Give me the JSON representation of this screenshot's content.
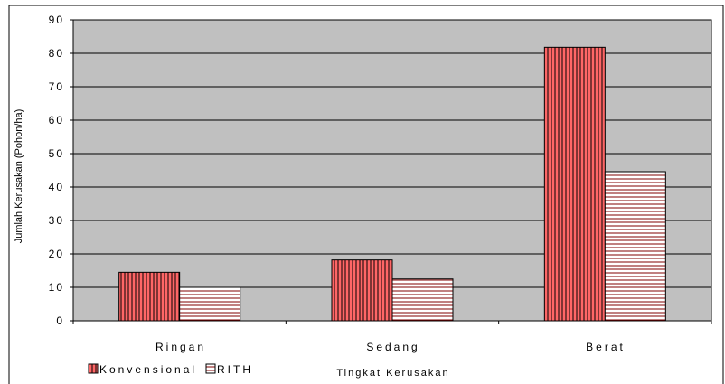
{
  "chart_data": {
    "type": "bar",
    "title": "",
    "xlabel": "Tingkat Kerusakan",
    "ylabel": "Jumlah Kerusakan  (Pohon/ha)",
    "categories": [
      "Ringan",
      "Sedang",
      "Berat"
    ],
    "series": [
      {
        "name": "Konvensional",
        "values": [
          14.5,
          18.2,
          81.8
        ],
        "color": "#ff6666",
        "pattern": "vertical-lines"
      },
      {
        "name": "RITH",
        "values": [
          10.0,
          12.5,
          44.6
        ],
        "color": "#ffffff",
        "pattern": "horizontal-lines"
      }
    ],
    "ylim": [
      0,
      90
    ],
    "yticks": [
      0,
      10,
      20,
      30,
      40,
      50,
      60,
      70,
      80,
      90
    ],
    "grid": true,
    "plot_background": "#c0c0c0",
    "legend_position": "bottom-left"
  }
}
